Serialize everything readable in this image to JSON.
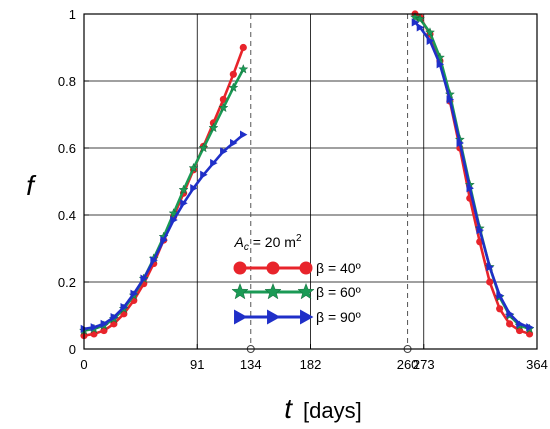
{
  "chart_data": {
    "type": "line",
    "xlabel": "t",
    "xunit": "[days]",
    "ylabel": "f",
    "xlim": [
      0,
      364
    ],
    "ylim": [
      0,
      1
    ],
    "x_ticks": [
      "0",
      "91",
      "182",
      "273",
      "364"
    ],
    "y_ticks": [
      "0",
      "0.2",
      "0.4",
      "0.6",
      "0.8",
      "1"
    ],
    "vlines": [
      {
        "x": 134,
        "label": "134"
      },
      {
        "x": 260,
        "label": "260"
      }
    ],
    "grid": true,
    "legend": {
      "placement": "center-bottom",
      "title_main": "A",
      "title_sub": "c",
      "title_rest": " = 20 m",
      "title_sup": "2"
    },
    "series": [
      {
        "name": "β = 40º",
        "color": "#e8242b",
        "marker": "circle",
        "x": [
          0,
          8,
          16,
          24,
          32,
          40,
          48,
          56,
          64,
          72,
          80,
          88,
          96,
          104,
          112,
          120,
          128,
          266,
          270,
          278,
          286,
          294,
          302,
          310,
          318,
          326,
          334,
          342,
          350,
          358
        ],
        "y": [
          0.04,
          0.045,
          0.055,
          0.075,
          0.105,
          0.145,
          0.195,
          0.255,
          0.325,
          0.395,
          0.465,
          0.535,
          0.605,
          0.675,
          0.745,
          0.82,
          0.9,
          1.0,
          0.99,
          0.94,
          0.86,
          0.74,
          0.6,
          0.45,
          0.32,
          0.2,
          0.12,
          0.075,
          0.055,
          0.045
        ]
      },
      {
        "name": "β = 60º",
        "color": "#1a9a55",
        "marker": "star",
        "x": [
          0,
          8,
          16,
          24,
          32,
          40,
          48,
          56,
          64,
          72,
          80,
          88,
          96,
          104,
          112,
          120,
          128,
          266,
          270,
          278,
          286,
          294,
          302,
          310,
          318,
          326,
          334,
          342,
          350,
          358
        ],
        "y": [
          0.055,
          0.06,
          0.07,
          0.09,
          0.12,
          0.16,
          0.21,
          0.27,
          0.335,
          0.405,
          0.475,
          0.54,
          0.6,
          0.66,
          0.72,
          0.78,
          0.835,
          0.99,
          0.985,
          0.945,
          0.87,
          0.76,
          0.625,
          0.49,
          0.36,
          0.245,
          0.155,
          0.1,
          0.07,
          0.06
        ]
      },
      {
        "name": "β = 90º",
        "color": "#1f2fc8",
        "marker": "triangle",
        "x": [
          0,
          8,
          16,
          24,
          32,
          40,
          48,
          56,
          64,
          72,
          80,
          88,
          96,
          104,
          112,
          120,
          128,
          266,
          270,
          278,
          286,
          294,
          302,
          310,
          318,
          326,
          334,
          342,
          350,
          358
        ],
        "y": [
          0.06,
          0.065,
          0.075,
          0.095,
          0.125,
          0.165,
          0.21,
          0.265,
          0.325,
          0.385,
          0.435,
          0.48,
          0.52,
          0.555,
          0.59,
          0.615,
          0.64,
          0.975,
          0.96,
          0.92,
          0.85,
          0.745,
          0.615,
          0.48,
          0.355,
          0.245,
          0.16,
          0.105,
          0.075,
          0.065
        ]
      }
    ]
  }
}
